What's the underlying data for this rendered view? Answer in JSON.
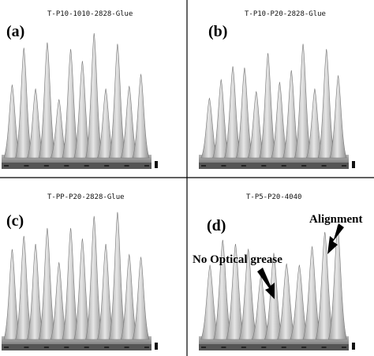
{
  "chart_data": [
    {
      "type": "area",
      "panel": "(a)",
      "title": "T-P10-1010-2828-Glue",
      "x": [
        1,
        2,
        3,
        4,
        5,
        6,
        7,
        8,
        9,
        10,
        11,
        12
      ],
      "values": [
        0.55,
        0.83,
        0.52,
        0.87,
        0.44,
        0.82,
        0.73,
        0.94,
        0.52,
        0.86,
        0.54,
        0.63
      ]
    },
    {
      "type": "area",
      "panel": "(b)",
      "title": "T-P10-P20-2828-Glue",
      "x": [
        1,
        2,
        3,
        4,
        5,
        6,
        7,
        8,
        9,
        10,
        11,
        12
      ],
      "values": [
        0.45,
        0.59,
        0.69,
        0.68,
        0.5,
        0.79,
        0.57,
        0.66,
        0.86,
        0.52,
        0.82,
        0.62
      ]
    },
    {
      "type": "area",
      "panel": "(c)",
      "title": "T-PP-P20-2828-Glue",
      "x": [
        1,
        2,
        3,
        4,
        5,
        6,
        7,
        8,
        9,
        10,
        11,
        12
      ],
      "values": [
        0.68,
        0.78,
        0.72,
        0.84,
        0.58,
        0.84,
        0.76,
        0.93,
        0.72,
        0.96,
        0.64,
        0.62
      ]
    },
    {
      "type": "area",
      "panel": "(d)",
      "title": "T-P5-P20-4040",
      "x": [
        1,
        2,
        3,
        4,
        5,
        6,
        7,
        8,
        9,
        10,
        11
      ],
      "values": [
        0.56,
        0.75,
        0.72,
        0.68,
        0.48,
        0.65,
        0.57,
        0.56,
        0.7,
        0.81,
        0.86
      ],
      "annotations": [
        "No Optical grease",
        "Alignment"
      ]
    }
  ]
}
